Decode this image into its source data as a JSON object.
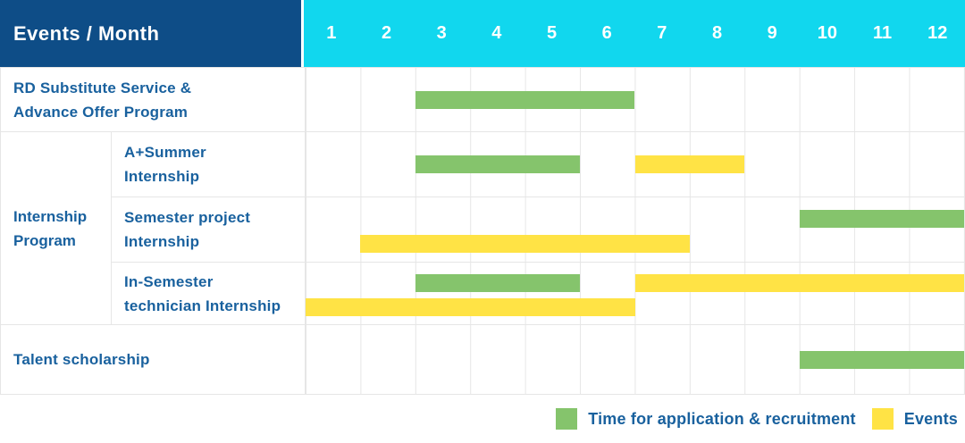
{
  "colors": {
    "header_bg": "#0E4D87",
    "months_header_bg": "#11D7EE",
    "application_green": "#85C46C",
    "events_yellow": "#FFE345",
    "label_text": "#19619E",
    "grid_line": "#E6E6E6"
  },
  "header": {
    "title": "Events / Month",
    "months": [
      "1",
      "2",
      "3",
      "4",
      "5",
      "6",
      "7",
      "8",
      "9",
      "10",
      "11",
      "12"
    ]
  },
  "chart_data": {
    "type": "gantt",
    "x_axis": {
      "label": "Month",
      "range": [
        1,
        12
      ]
    },
    "series": [
      {
        "key": "application",
        "label": "Time for application & recruitment",
        "color": "#85C46C"
      },
      {
        "key": "events",
        "label": "Events",
        "color": "#FFE345"
      }
    ],
    "groups": [
      {
        "label": "Internship Program",
        "lines": [
          "Internship",
          "Program"
        ],
        "row_indexes": [
          1,
          2,
          3
        ]
      }
    ],
    "rows": [
      {
        "label": "RD Substitute Service & Advance Offer Program",
        "lines": [
          "RD Substitute Service &",
          "Advance Offer Program"
        ],
        "group": null,
        "bars": [
          {
            "series": "application",
            "start_month": 3,
            "end_month": 6,
            "lane": "center"
          }
        ]
      },
      {
        "label": "A+Summer Internship",
        "lines": [
          "A+Summer",
          "Internship"
        ],
        "group": "Internship Program",
        "bars": [
          {
            "series": "application",
            "start_month": 3,
            "end_month": 5,
            "lane": "center"
          },
          {
            "series": "events",
            "start_month": 7,
            "end_month": 8,
            "lane": "center"
          }
        ]
      },
      {
        "label": "Semester project Internship",
        "lines": [
          "Semester project",
          "Internship"
        ],
        "group": "Internship Program",
        "bars": [
          {
            "series": "application",
            "start_month": 10,
            "end_month": 12,
            "lane": "upper"
          },
          {
            "series": "events",
            "start_month": 2,
            "end_month": 7,
            "lane": "lower"
          }
        ]
      },
      {
        "label": "In-Semester technician Internship",
        "lines": [
          "In-Semester",
          "technician Internship"
        ],
        "group": "Internship Program",
        "bars": [
          {
            "series": "application",
            "start_month": 3,
            "end_month": 5,
            "lane": "upper"
          },
          {
            "series": "events",
            "start_month": 7,
            "end_month": 12,
            "lane": "upper"
          },
          {
            "series": "events",
            "start_month": 1,
            "end_month": 6,
            "lane": "lower"
          }
        ]
      },
      {
        "label": "Talent scholarship",
        "lines": [
          "Talent scholarship"
        ],
        "group": null,
        "bars": [
          {
            "series": "application",
            "start_month": 10,
            "end_month": 12,
            "lane": "center"
          }
        ]
      }
    ]
  },
  "legend": {
    "items": [
      {
        "label": "Time for application & recruitment",
        "series": "application"
      },
      {
        "label": "Events",
        "series": "events"
      }
    ]
  }
}
